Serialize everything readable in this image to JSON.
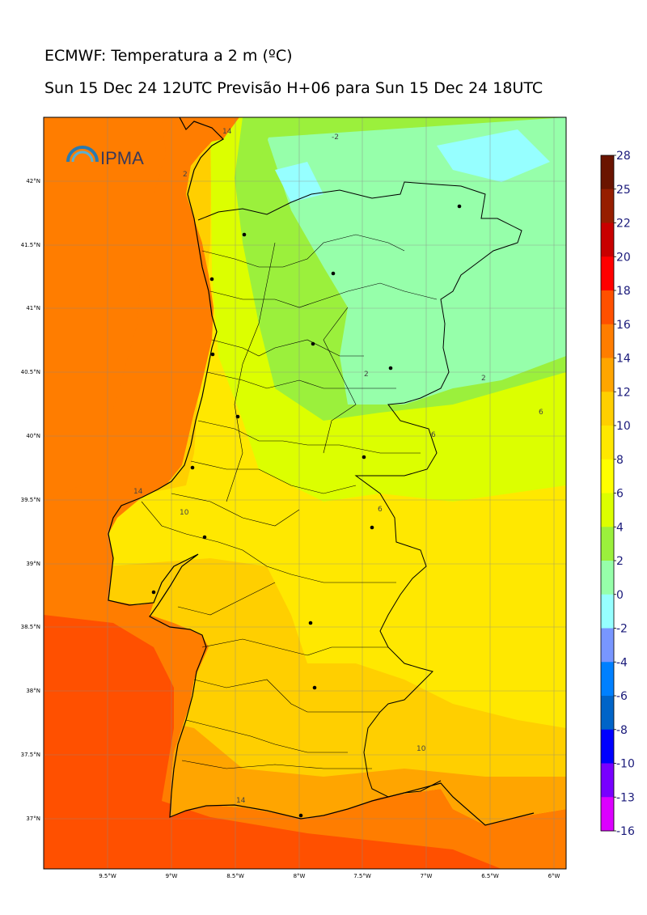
{
  "title": "ECMWF: Temperatura a 2 m (ºC)",
  "subtitle": "Sun 15 Dec 24 12UTC Previsão H+06 para Sun 15 Dec 24 18UTC",
  "logo_text": "IPMA",
  "x_ticks": [
    "9.5°W",
    "9°W",
    "8.5°W",
    "8°W",
    "7.5°W",
    "7°W",
    "6.5°W",
    "6°W"
  ],
  "y_ticks": [
    "42°N",
    "41.5°N",
    "41°N",
    "40.5°N",
    "40°N",
    "39.5°N",
    "39°N",
    "38.5°N",
    "38°N",
    "37.5°N",
    "37°N"
  ],
  "colorbar": {
    "labels": [
      "28",
      "25",
      "22",
      "20",
      "18",
      "16",
      "14",
      "12",
      "10",
      "8",
      "6",
      "4",
      "2",
      "0",
      "-2",
      "-4",
      "-6",
      "-8",
      "-10",
      "-13",
      "-16"
    ],
    "colors": [
      "#6a1400",
      "#961e00",
      "#c80000",
      "#ff0000",
      "#ff5000",
      "#ff7d00",
      "#ffa500",
      "#ffcf00",
      "#ffe800",
      "#ffff00",
      "#dcff00",
      "#9bf03c",
      "#96ffaa",
      "#96ffff",
      "#7896ff",
      "#0080ff",
      "#0064c8",
      "#0000ff",
      "#7800ff",
      "#dc00ff"
    ]
  },
  "contour_labels": [
    "-2",
    "2",
    "2",
    "2",
    "6",
    "6",
    "6",
    "10",
    "10",
    "14",
    "14",
    "14"
  ],
  "city_markers": 16
}
